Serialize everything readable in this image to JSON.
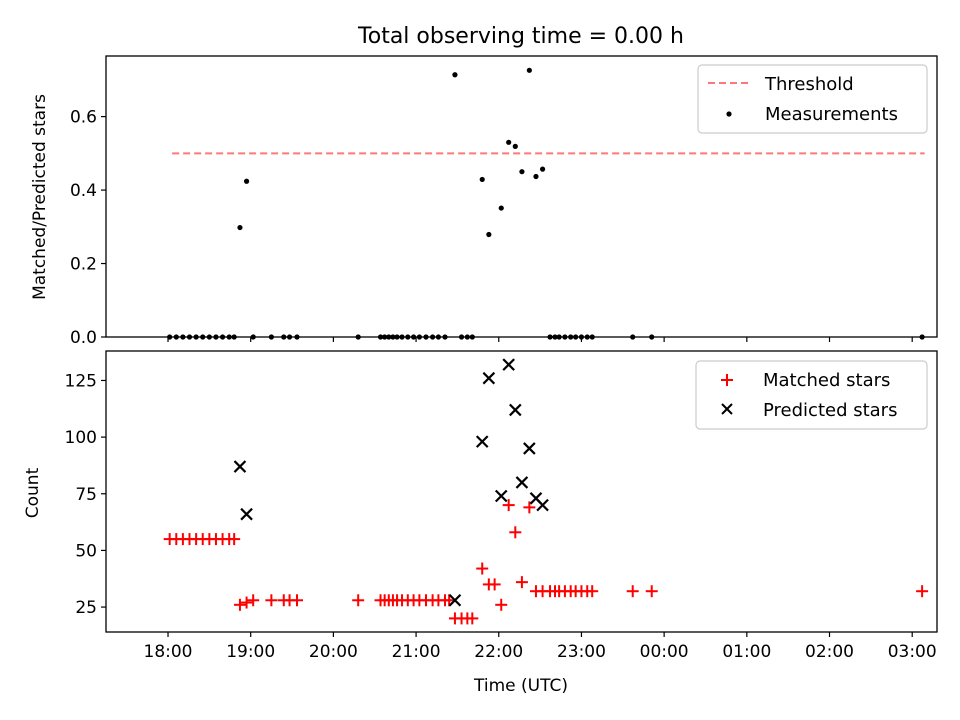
{
  "title": "Total observing time = 0.00 h",
  "chart_data": [
    {
      "type": "scatter",
      "ylabel": "Matched/Predicted stars",
      "xlim": [
        17.25,
        27.3
      ],
      "ylim": [
        0,
        0.765
      ],
      "yticks": [
        0.0,
        0.2,
        0.4,
        0.6
      ],
      "ytick_labels": [
        "0.0",
        "0.2",
        "0.4",
        "0.6"
      ],
      "legend_position": "upper right",
      "threshold": {
        "name": "Threshold",
        "value": 0.5,
        "x_range": [
          18.05,
          27.15
        ],
        "color": "#ff7777",
        "style": "dashed"
      },
      "series": [
        {
          "name": "Measurements",
          "marker": "dot",
          "color": "#000000",
          "x": [
            18.02,
            18.1,
            18.18,
            18.26,
            18.34,
            18.42,
            18.5,
            18.58,
            18.66,
            18.74,
            18.8,
            18.87,
            18.95,
            19.03,
            19.25,
            19.4,
            19.47,
            19.56,
            20.3,
            20.57,
            20.62,
            20.67,
            20.72,
            20.77,
            20.83,
            20.9,
            20.97,
            21.04,
            21.12,
            21.2,
            21.27,
            21.35,
            21.47,
            21.55,
            21.62,
            21.68,
            21.8,
            21.88,
            22.03,
            22.12,
            22.2,
            22.28,
            22.37,
            22.45,
            22.53,
            22.62,
            22.68,
            22.73,
            22.8,
            22.87,
            22.93,
            23.0,
            23.07,
            23.13,
            23.62,
            23.85,
            27.12
          ],
          "y": [
            0,
            0,
            0,
            0,
            0,
            0,
            0,
            0,
            0,
            0,
            0,
            0.298,
            0.424,
            0,
            0,
            0,
            0,
            0,
            0,
            0,
            0,
            0,
            0,
            0,
            0,
            0,
            0,
            0,
            0,
            0,
            0,
            0,
            0.714,
            0,
            0,
            0,
            0.429,
            0.279,
            0.351,
            0.53,
            0.519,
            0.45,
            0.726,
            0.437,
            0.457,
            0,
            0,
            0,
            0,
            0,
            0,
            0,
            0,
            0,
            0,
            0,
            0
          ]
        }
      ]
    },
    {
      "type": "scatter",
      "xlabel": "Time (UTC)",
      "ylabel": "Count",
      "xlim": [
        17.25,
        27.3
      ],
      "ylim": [
        14,
        138
      ],
      "yticks": [
        25,
        50,
        75,
        100,
        125
      ],
      "ytick_labels": [
        "25",
        "50",
        "75",
        "100",
        "125"
      ],
      "xticks": [
        18,
        19,
        20,
        21,
        22,
        23,
        24,
        25,
        26,
        27
      ],
      "xtick_labels": [
        "18:00",
        "19:00",
        "20:00",
        "21:00",
        "22:00",
        "23:00",
        "00:00",
        "01:00",
        "02:00",
        "03:00"
      ],
      "legend_position": "upper right",
      "series": [
        {
          "name": "Matched stars",
          "marker": "plus",
          "color": "#ff0000",
          "x": [
            18.02,
            18.1,
            18.18,
            18.26,
            18.34,
            18.42,
            18.5,
            18.58,
            18.66,
            18.74,
            18.8,
            18.87,
            18.95,
            19.03,
            19.25,
            19.4,
            19.47,
            19.56,
            20.3,
            20.57,
            20.62,
            20.67,
            20.72,
            20.77,
            20.83,
            20.9,
            20.97,
            21.04,
            21.12,
            21.2,
            21.27,
            21.35,
            21.4,
            21.47,
            21.55,
            21.62,
            21.68,
            21.8,
            21.88,
            21.95,
            22.03,
            22.12,
            22.2,
            22.28,
            22.37,
            22.45,
            22.53,
            22.62,
            22.68,
            22.73,
            22.8,
            22.87,
            22.93,
            23.0,
            23.07,
            23.13,
            23.62,
            23.85,
            27.12
          ],
          "y": [
            55,
            55,
            55,
            55,
            55,
            55,
            55,
            55,
            55,
            55,
            55,
            26,
            27,
            28,
            28,
            28,
            28,
            28,
            28,
            28,
            28,
            28,
            28,
            28,
            28,
            28,
            28,
            28,
            28,
            28,
            28,
            28,
            28,
            20,
            20,
            20,
            20,
            42,
            35,
            35,
            26,
            70,
            58,
            36,
            69,
            32,
            32,
            32,
            32,
            32,
            32,
            32,
            32,
            32,
            32,
            32,
            32,
            32,
            32
          ]
        },
        {
          "name": "Predicted stars",
          "marker": "x",
          "color": "#000000",
          "x": [
            18.87,
            18.95,
            21.47,
            21.8,
            21.88,
            22.03,
            22.12,
            22.2,
            22.28,
            22.37,
            22.45,
            22.53
          ],
          "y": [
            87,
            66,
            28,
            98,
            126,
            74,
            132,
            112,
            80,
            95,
            73,
            70
          ]
        }
      ]
    }
  ]
}
